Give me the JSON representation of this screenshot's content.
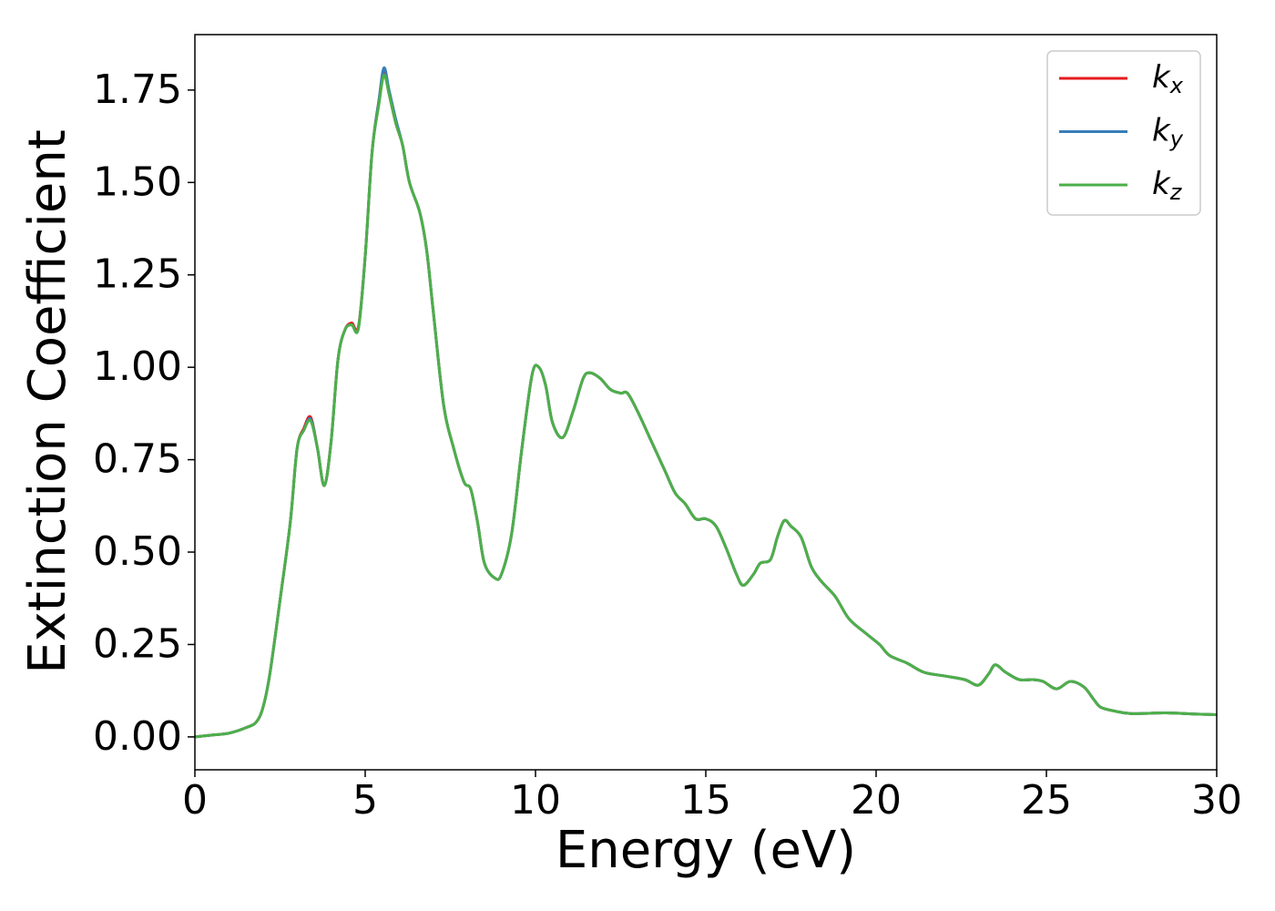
{
  "chart_data": {
    "type": "line",
    "xlabel": "Energy (eV)",
    "ylabel": "Extinction Coefficient",
    "x": [
      0,
      0.5,
      1,
      1.5,
      1.8,
      2.0,
      2.2,
      2.5,
      2.8,
      3.0,
      3.2,
      3.4,
      3.6,
      3.8,
      4.0,
      4.2,
      4.4,
      4.6,
      4.8,
      5.0,
      5.2,
      5.4,
      5.55,
      5.7,
      5.9,
      6.1,
      6.3,
      6.6,
      6.8,
      7.0,
      7.3,
      7.6,
      7.9,
      8.1,
      8.3,
      8.5,
      8.8,
      9.0,
      9.3,
      9.6,
      9.9,
      10.1,
      10.3,
      10.5,
      10.8,
      11.1,
      11.4,
      11.6,
      11.9,
      12.2,
      12.5,
      12.7,
      13.0,
      13.4,
      13.8,
      14.1,
      14.4,
      14.7,
      15.0,
      15.3,
      15.6,
      15.9,
      16.1,
      16.4,
      16.6,
      16.9,
      17.1,
      17.3,
      17.5,
      17.8,
      18.1,
      18.4,
      18.8,
      19.2,
      19.7,
      20.1,
      20.4,
      20.9,
      21.4,
      22.0,
      22.6,
      23.0,
      23.3,
      23.5,
      23.8,
      24.2,
      24.6,
      24.9,
      25.3,
      25.7,
      26.1,
      26.4,
      26.6,
      27.0,
      27.5,
      28.5,
      29.3,
      30
    ],
    "series": [
      {
        "name": "kx",
        "color": "#e41a1c",
        "values": [
          0,
          0.005,
          0.01,
          0.025,
          0.04,
          0.08,
          0.17,
          0.37,
          0.58,
          0.78,
          0.835,
          0.865,
          0.78,
          0.68,
          0.8,
          1.02,
          1.1,
          1.12,
          1.11,
          1.3,
          1.58,
          1.72,
          1.8,
          1.74,
          1.66,
          1.6,
          1.5,
          1.42,
          1.32,
          1.15,
          0.9,
          0.78,
          0.69,
          0.67,
          0.58,
          0.47,
          0.43,
          0.44,
          0.55,
          0.78,
          0.98,
          1.0,
          0.95,
          0.85,
          0.81,
          0.88,
          0.97,
          0.985,
          0.97,
          0.94,
          0.93,
          0.93,
          0.88,
          0.8,
          0.72,
          0.66,
          0.63,
          0.59,
          0.59,
          0.57,
          0.51,
          0.44,
          0.41,
          0.44,
          0.47,
          0.48,
          0.54,
          0.585,
          0.57,
          0.54,
          0.46,
          0.42,
          0.38,
          0.32,
          0.28,
          0.25,
          0.22,
          0.2,
          0.175,
          0.165,
          0.155,
          0.14,
          0.17,
          0.195,
          0.175,
          0.155,
          0.155,
          0.15,
          0.13,
          0.15,
          0.135,
          0.1,
          0.08,
          0.07,
          0.063,
          0.065,
          0.062,
          0.06
        ]
      },
      {
        "name": "ky",
        "color": "#377eb8",
        "values": [
          0,
          0.005,
          0.01,
          0.025,
          0.04,
          0.08,
          0.17,
          0.37,
          0.58,
          0.78,
          0.83,
          0.86,
          0.78,
          0.68,
          0.8,
          1.02,
          1.1,
          1.115,
          1.105,
          1.3,
          1.58,
          1.72,
          1.81,
          1.75,
          1.67,
          1.6,
          1.5,
          1.42,
          1.32,
          1.15,
          0.9,
          0.78,
          0.69,
          0.67,
          0.58,
          0.47,
          0.43,
          0.44,
          0.55,
          0.78,
          0.98,
          1.0,
          0.95,
          0.85,
          0.81,
          0.88,
          0.97,
          0.985,
          0.97,
          0.94,
          0.93,
          0.93,
          0.88,
          0.8,
          0.72,
          0.66,
          0.63,
          0.59,
          0.59,
          0.57,
          0.51,
          0.44,
          0.41,
          0.44,
          0.47,
          0.48,
          0.54,
          0.585,
          0.57,
          0.54,
          0.46,
          0.42,
          0.38,
          0.32,
          0.28,
          0.25,
          0.22,
          0.2,
          0.175,
          0.165,
          0.155,
          0.14,
          0.17,
          0.195,
          0.175,
          0.155,
          0.155,
          0.15,
          0.13,
          0.15,
          0.135,
          0.1,
          0.08,
          0.07,
          0.063,
          0.065,
          0.062,
          0.06
        ]
      },
      {
        "name": "kz",
        "color": "#4daf4a",
        "values": [
          0,
          0.005,
          0.01,
          0.025,
          0.04,
          0.08,
          0.17,
          0.37,
          0.58,
          0.78,
          0.83,
          0.855,
          0.78,
          0.68,
          0.8,
          1.02,
          1.1,
          1.115,
          1.105,
          1.3,
          1.58,
          1.71,
          1.79,
          1.74,
          1.66,
          1.6,
          1.5,
          1.42,
          1.32,
          1.15,
          0.9,
          0.78,
          0.69,
          0.67,
          0.58,
          0.47,
          0.43,
          0.44,
          0.55,
          0.78,
          0.98,
          1.0,
          0.95,
          0.85,
          0.81,
          0.88,
          0.97,
          0.985,
          0.97,
          0.94,
          0.93,
          0.93,
          0.88,
          0.8,
          0.72,
          0.66,
          0.63,
          0.59,
          0.59,
          0.57,
          0.51,
          0.44,
          0.41,
          0.44,
          0.47,
          0.48,
          0.54,
          0.585,
          0.57,
          0.54,
          0.46,
          0.42,
          0.38,
          0.32,
          0.28,
          0.25,
          0.22,
          0.2,
          0.175,
          0.165,
          0.155,
          0.14,
          0.17,
          0.195,
          0.175,
          0.155,
          0.155,
          0.15,
          0.13,
          0.15,
          0.135,
          0.1,
          0.08,
          0.07,
          0.063,
          0.065,
          0.062,
          0.06
        ]
      }
    ],
    "xlim": [
      0,
      30
    ],
    "xticks": [
      0,
      5,
      10,
      15,
      20,
      25,
      30
    ],
    "ylim": [
      -0.089,
      1.9
    ],
    "yticks": [
      {
        "value": 0,
        "label": "0.00"
      },
      {
        "value": 0.25,
        "label": "0.25"
      },
      {
        "value": 0.5,
        "label": "0.50"
      },
      {
        "value": 0.75,
        "label": "0.75"
      },
      {
        "value": 1.0,
        "label": "1.00"
      },
      {
        "value": 1.25,
        "label": "1.25"
      },
      {
        "value": 1.5,
        "label": "1.50"
      },
      {
        "value": 1.75,
        "label": "1.75"
      }
    ],
    "legend": "upper right",
    "grid": false
  }
}
